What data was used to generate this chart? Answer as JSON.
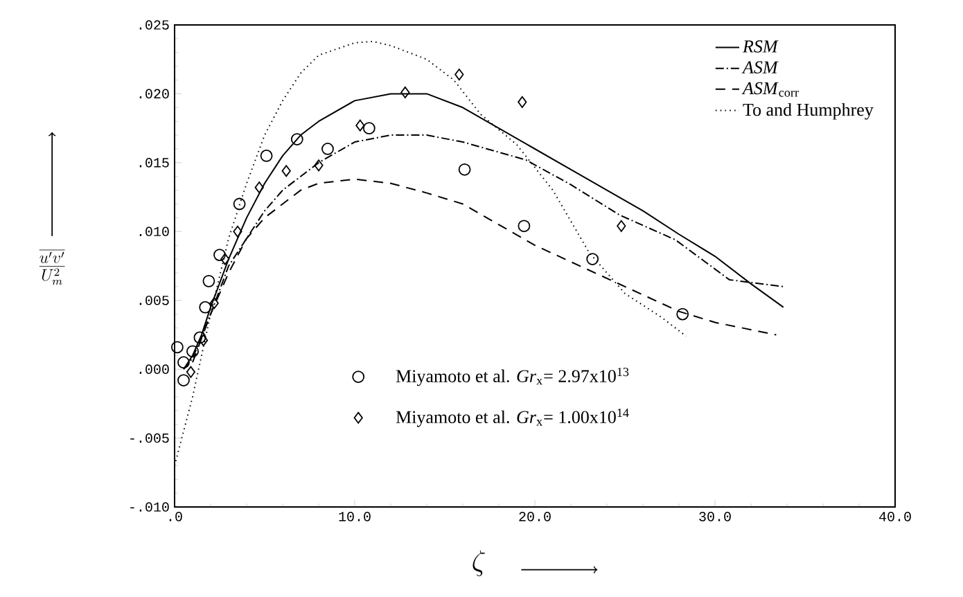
{
  "chart_data": {
    "type": "line",
    "xlabel": "\\zeta",
    "ylabel": "\\frac{\\overline{u'v'}}{U_m^2}",
    "xlim": [
      0,
      40
    ],
    "ylim": [
      -0.01,
      0.025
    ],
    "xticks": [
      {
        "value": 0,
        "label": ".0"
      },
      {
        "value": 10,
        "label": "10.0"
      },
      {
        "value": 20,
        "label": "20.0"
      },
      {
        "value": 30,
        "label": "30.0"
      },
      {
        "value": 40,
        "label": "40.0"
      }
    ],
    "yticks": [
      {
        "value": -0.01,
        "label": "-.010"
      },
      {
        "value": -0.005,
        "label": "-.005"
      },
      {
        "value": 0,
        "label": ".000"
      },
      {
        "value": 0.005,
        "label": ".005"
      },
      {
        "value": 0.01,
        "label": ".010"
      },
      {
        "value": 0.015,
        "label": ".015"
      },
      {
        "value": 0.02,
        "label": ".020"
      },
      {
        "value": 0.025,
        "label": ".025"
      }
    ],
    "legend": "top right",
    "series": [
      {
        "name": "*RSM*",
        "color": "#000000",
        "line_style": "solid",
        "x": [
          0.5,
          1,
          1.5,
          2,
          3,
          4,
          5,
          6,
          7,
          8,
          10,
          12,
          14,
          16,
          18,
          20,
          22,
          24,
          26,
          28,
          30,
          32,
          33.8
        ],
        "values": [
          0,
          0.001,
          0.0025,
          0.0045,
          0.008,
          0.011,
          0.0135,
          0.0155,
          0.017,
          0.018,
          0.0195,
          0.02,
          0.02,
          0.019,
          0.0175,
          0.016,
          0.0145,
          0.013,
          0.0115,
          0.0098,
          0.0082,
          0.0062,
          0.0045
        ]
      },
      {
        "name": "*ASM*",
        "color": "#000000",
        "line_style": "dashdot",
        "x": [
          0.5,
          1,
          2,
          3,
          4,
          5,
          6,
          7,
          8,
          10,
          12,
          14,
          16,
          19.5,
          22,
          24.7,
          27.8,
          30.8,
          33.8
        ],
        "values": [
          0,
          0.0008,
          0.004,
          0.0075,
          0.0095,
          0.0115,
          0.013,
          0.014,
          0.015,
          0.0165,
          0.017,
          0.017,
          0.0165,
          0.0152,
          0.0134,
          0.0112,
          0.0094,
          0.0065,
          0.006
        ]
      },
      {
        "name": "*ASM*$_{corr}$",
        "color": "#000000",
        "line_style": "dashed",
        "x": [
          1,
          2,
          3,
          4,
          5,
          6,
          7,
          8,
          10,
          12,
          14,
          16,
          18,
          20,
          22,
          24,
          26,
          28,
          30,
          33.4
        ],
        "values": [
          0.0005,
          0.004,
          0.007,
          0.0095,
          0.011,
          0.012,
          0.013,
          0.0135,
          0.0138,
          0.0135,
          0.0128,
          0.012,
          0.0105,
          0.009,
          0.0078,
          0.0066,
          0.0054,
          0.0042,
          0.0034,
          0.0025
        ]
      },
      {
        "name": "To and Humphrey",
        "color": "#000000",
        "line_style": "dotted",
        "x": [
          0,
          1,
          2,
          3,
          4,
          5,
          6,
          7,
          8,
          10,
          11,
          12,
          14,
          15.5,
          17,
          19,
          21,
          23,
          25,
          27,
          28.4
        ],
        "values": [
          -0.007,
          -0.002,
          0.004,
          0.0095,
          0.0135,
          0.017,
          0.0195,
          0.0215,
          0.0228,
          0.0237,
          0.0238,
          0.0235,
          0.0225,
          0.021,
          0.0185,
          0.0163,
          0.013,
          0.0085,
          0.0055,
          0.0038,
          0.0024
        ]
      },
      {
        "name": "Miyamoto et al.  *Gr*$_{x}$= 2.97x10$^{13}$",
        "type": "scatter",
        "color": "#000000",
        "marker": "circle",
        "x": [
          0.15,
          0.5,
          1.0,
          0.5,
          1.4,
          1.7,
          1.9,
          2.5,
          3.6,
          5.1,
          6.8,
          8.5,
          10.8,
          16.1,
          19.4,
          23.2,
          28.2
        ],
        "values": [
          0.0016,
          0.0005,
          0.0013,
          -0.0008,
          0.0023,
          0.0045,
          0.0064,
          0.0083,
          0.012,
          0.0155,
          0.0167,
          0.016,
          0.0175,
          0.0145,
          0.0104,
          0.008,
          0.004
        ]
      },
      {
        "name": "Miyamoto et al.  *Gr*$_{x}$= 1.00x10$^{14}$",
        "type": "scatter",
        "color": "#000000",
        "marker": "diamond",
        "x": [
          0.9,
          1.6,
          2.2,
          2.8,
          3.5,
          4.7,
          6.2,
          8.0,
          10.3,
          12.8,
          15.8,
          19.3,
          24.8
        ],
        "values": [
          -0.0002,
          0.0021,
          0.0048,
          0.008,
          0.01,
          0.0132,
          0.0144,
          0.0148,
          0.0177,
          0.0201,
          0.0214,
          0.0194,
          0.0104
        ]
      }
    ]
  }
}
